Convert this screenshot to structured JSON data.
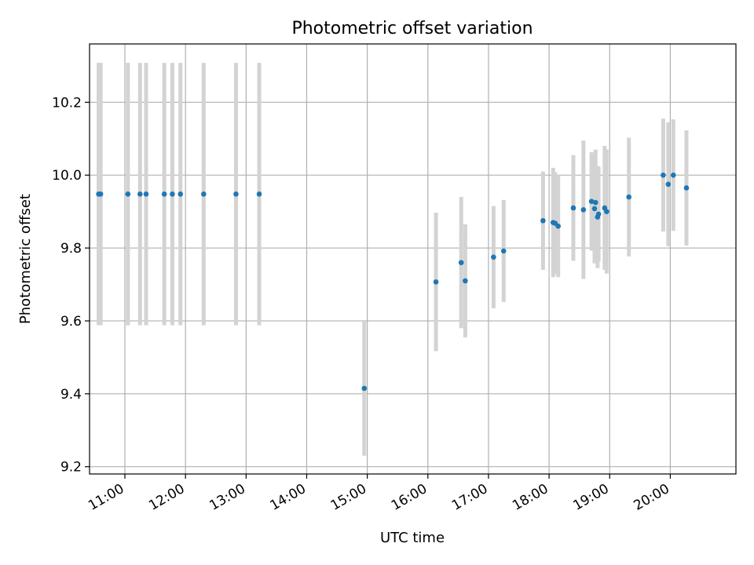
{
  "chart_data": {
    "type": "scatter",
    "title": "Photometric offset variation",
    "xlabel": "UTC time",
    "ylabel": "Photometric offset",
    "x_ticks": [
      "11:00",
      "12:00",
      "13:00",
      "14:00",
      "15:00",
      "16:00",
      "17:00",
      "18:00",
      "19:00",
      "20:00"
    ],
    "y_ticks": [
      "9.2",
      "9.4",
      "9.6",
      "9.8",
      "10.0",
      "10.2"
    ],
    "xlim": [
      "10:25",
      "21:05"
    ],
    "ylim": [
      9.18,
      10.36
    ],
    "grid": true,
    "colors": {
      "point": "#1f77b4",
      "errorbar": "#d3d3d3",
      "grid": "#b0b0b0"
    },
    "points": [
      {
        "x": "10:34",
        "y": 9.948,
        "err": 0.36
      },
      {
        "x": "10:36",
        "y": 9.948,
        "err": 0.36
      },
      {
        "x": "11:03",
        "y": 9.948,
        "err": 0.36
      },
      {
        "x": "11:15",
        "y": 9.948,
        "err": 0.36
      },
      {
        "x": "11:21",
        "y": 9.948,
        "err": 0.36
      },
      {
        "x": "11:39",
        "y": 9.948,
        "err": 0.36
      },
      {
        "x": "11:47",
        "y": 9.948,
        "err": 0.36
      },
      {
        "x": "11:55",
        "y": 9.948,
        "err": 0.36
      },
      {
        "x": "12:18",
        "y": 9.948,
        "err": 0.36
      },
      {
        "x": "12:50",
        "y": 9.948,
        "err": 0.36
      },
      {
        "x": "13:13",
        "y": 9.948,
        "err": 0.36
      },
      {
        "x": "14:57",
        "y": 9.415,
        "err": 0.185
      },
      {
        "x": "16:08",
        "y": 9.707,
        "err": 0.19
      },
      {
        "x": "16:33",
        "y": 9.76,
        "err": 0.18
      },
      {
        "x": "16:37",
        "y": 9.71,
        "err": 0.155
      },
      {
        "x": "17:05",
        "y": 9.775,
        "err": 0.14
      },
      {
        "x": "17:15",
        "y": 9.792,
        "err": 0.14
      },
      {
        "x": "17:54",
        "y": 9.875,
        "err": 0.135
      },
      {
        "x": "18:04",
        "y": 9.87,
        "err": 0.15
      },
      {
        "x": "18:06",
        "y": 9.868,
        "err": 0.14
      },
      {
        "x": "18:09",
        "y": 9.86,
        "err": 0.14
      },
      {
        "x": "18:24",
        "y": 9.91,
        "err": 0.145
      },
      {
        "x": "18:34",
        "y": 9.905,
        "err": 0.19
      },
      {
        "x": "18:42",
        "y": 9.928,
        "err": 0.135
      },
      {
        "x": "18:45",
        "y": 9.908,
        "err": 0.15
      },
      {
        "x": "18:46",
        "y": 9.925,
        "err": 0.145
      },
      {
        "x": "18:48",
        "y": 9.885,
        "err": 0.14
      },
      {
        "x": "18:49",
        "y": 9.893,
        "err": 0.13
      },
      {
        "x": "18:55",
        "y": 9.91,
        "err": 0.17
      },
      {
        "x": "18:57",
        "y": 9.9,
        "err": 0.17
      },
      {
        "x": "19:19",
        "y": 9.94,
        "err": 0.163
      },
      {
        "x": "19:53",
        "y": 10.0,
        "err": 0.155
      },
      {
        "x": "19:58",
        "y": 9.975,
        "err": 0.17
      },
      {
        "x": "20:03",
        "y": 10.0,
        "err": 0.153
      },
      {
        "x": "20:16",
        "y": 9.965,
        "err": 0.158
      }
    ]
  }
}
